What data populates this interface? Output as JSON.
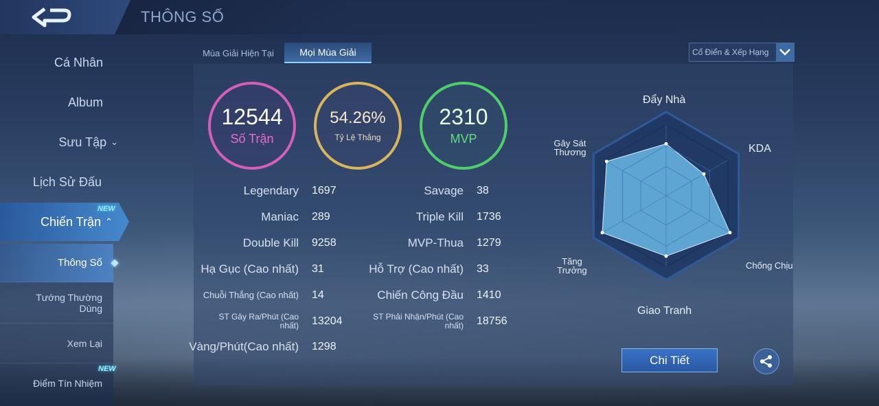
{
  "header": {
    "title": "THÔNG SỐ",
    "back_icon": "back-arrow-icon"
  },
  "sidebar": {
    "items": [
      {
        "label": "Cá Nhân"
      },
      {
        "label": "Album"
      },
      {
        "label": "Sưu Tập"
      },
      {
        "label": "Lịch Sử Đấu"
      }
    ],
    "active": {
      "label": "Chiến Trận",
      "badge": "NEW"
    },
    "subitems": [
      {
        "label": "Thông Số"
      },
      {
        "label": "Tướng Thường Dùng"
      },
      {
        "label": "Xem Lại"
      },
      {
        "label": "Điểm Tín Nhiệm",
        "badge": "NEW"
      }
    ]
  },
  "tabs": [
    {
      "label": "Mùa Giải Hiện Tại"
    },
    {
      "label": "Mọi Mùa Giải"
    }
  ],
  "filter": {
    "selected": "Cổ Điển & Xếp Hạng"
  },
  "summary": {
    "matches": {
      "value": "12544",
      "label": "Số Trận"
    },
    "winrate": {
      "value": "54.26%",
      "label": "Tỷ Lệ Thắng"
    },
    "mvp": {
      "value": "2310",
      "label": "MVP"
    }
  },
  "stats_left": [
    {
      "label": "Legendary",
      "value": "1697"
    },
    {
      "label": "Maniac",
      "value": "289"
    },
    {
      "label": "Double Kill",
      "value": "9258"
    },
    {
      "label": "Hạ Gục (Cao nhất)",
      "value": "31"
    },
    {
      "label": "Chuỗi Thắng (Cao nhất)",
      "value": "14"
    },
    {
      "label": "ST Gây Ra/Phút (Cao nhất)",
      "value": "13204"
    },
    {
      "label": "Vàng/Phút(Cao nhất)",
      "value": "1298"
    }
  ],
  "stats_right": [
    {
      "label": "Savage",
      "value": "38"
    },
    {
      "label": "Triple Kill",
      "value": "1736"
    },
    {
      "label": "MVP-Thua",
      "value": "1279"
    },
    {
      "label": "Hỗ Trợ (Cao nhất)",
      "value": "33"
    },
    {
      "label": "Chiến Công Đầu",
      "value": "1410"
    },
    {
      "label": "ST Phải Nhận/Phút (Cao nhất)",
      "value": "18756"
    }
  ],
  "radar": {
    "axes": [
      "Đẩy Nhà",
      "KDA",
      "Chống Chịu",
      "Giao Tranh",
      "Tăng Trưởng",
      "Gây Sát Thương"
    ],
    "levels": [
      0.62,
      0.52,
      0.88,
      0.72,
      0.88,
      0.82
    ],
    "fill_color": "#6ab8e8"
  },
  "actions": {
    "detail_label": "Chi Tiết",
    "share_icon": "share-icon"
  }
}
